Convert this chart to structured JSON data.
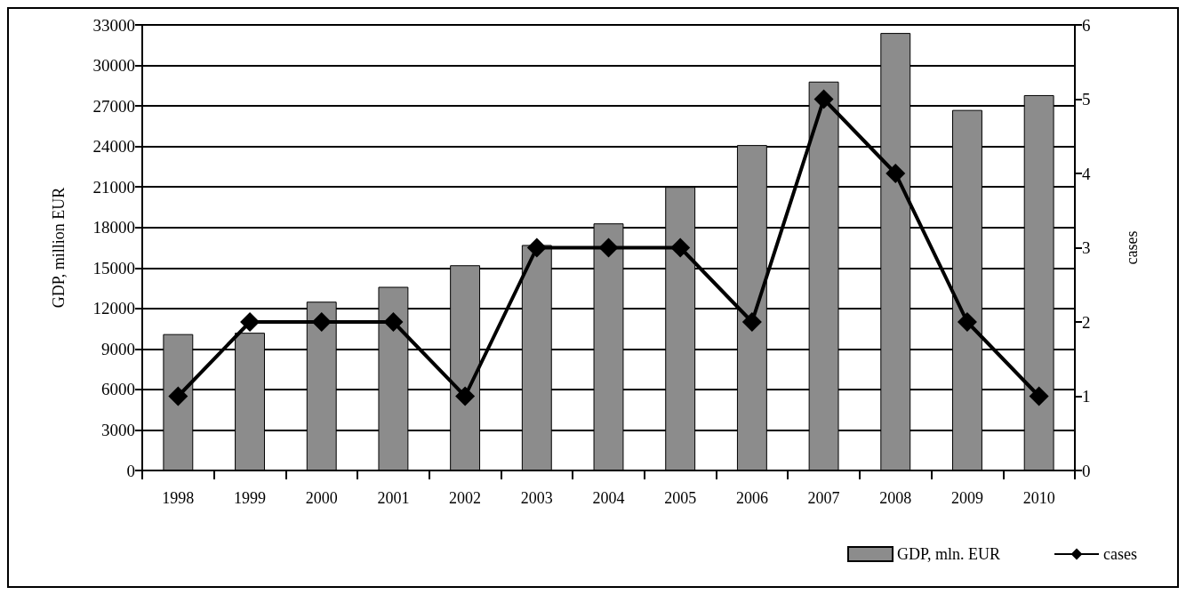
{
  "chart_data": {
    "type": "bar",
    "ylabel": "GDP, million EUR",
    "y2label": "cases",
    "categories": [
      "1998",
      "1999",
      "2000",
      "2001",
      "2002",
      "2003",
      "2004",
      "2005",
      "2006",
      "2007",
      "2008",
      "2009",
      "2010"
    ],
    "series": [
      {
        "name": "GDP, mln. EUR",
        "color": "#8c8c8c",
        "values": [
          10100,
          10200,
          12500,
          13600,
          15200,
          16700,
          18300,
          21000,
          24100,
          28800,
          32400,
          26700,
          27800
        ]
      },
      {
        "name": "cases",
        "type": "line",
        "axis": "y2",
        "color": "#000000",
        "marker": "diamond",
        "line_style": "solid",
        "values": [
          1,
          2,
          2,
          2,
          1,
          3,
          3,
          3,
          2,
          5,
          4,
          2,
          1
        ]
      }
    ],
    "ylim": [
      0,
      33000
    ],
    "yticks": [
      0,
      3000,
      6000,
      9000,
      12000,
      15000,
      18000,
      21000,
      24000,
      27000,
      30000,
      33000
    ],
    "y2lim": [
      0,
      6
    ],
    "y2ticks": [
      0,
      1,
      2,
      3,
      4,
      5,
      6
    ],
    "grid": "y",
    "legend": "bottom right"
  }
}
